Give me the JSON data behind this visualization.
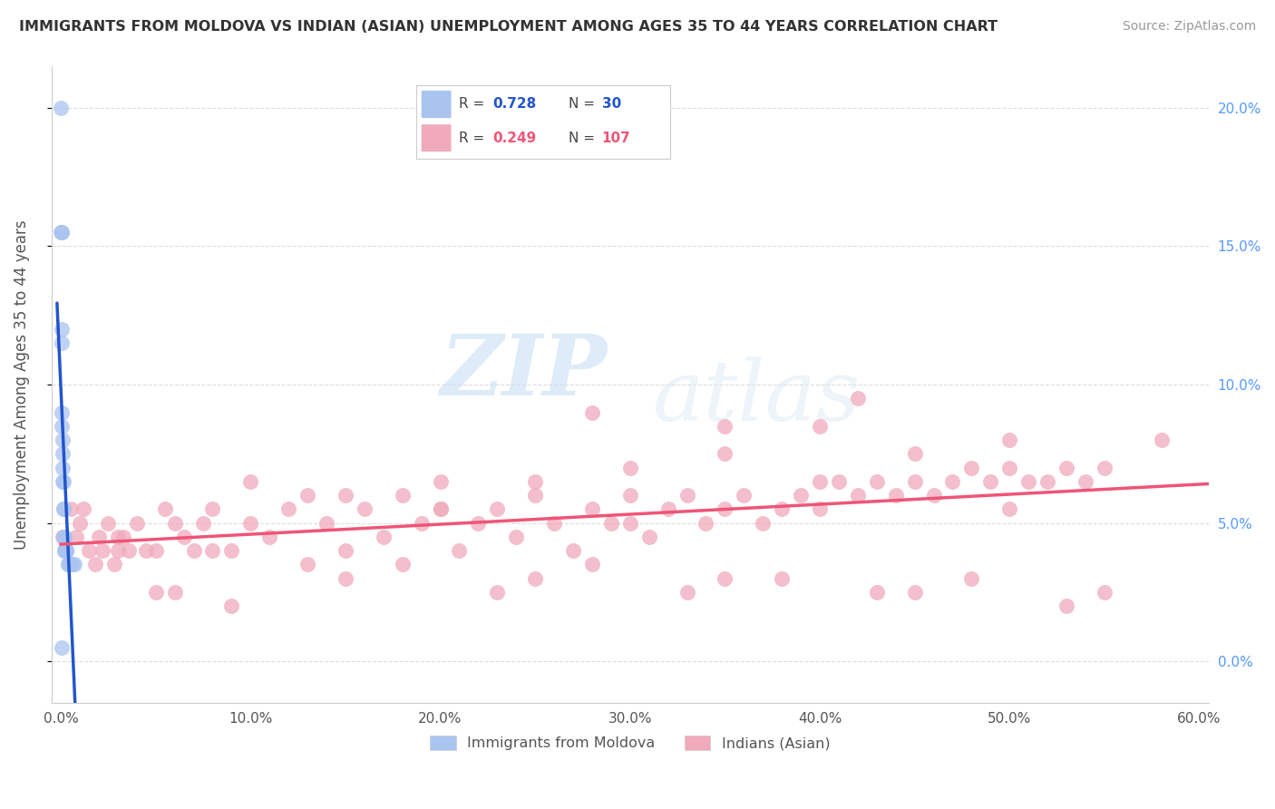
{
  "title": "IMMIGRANTS FROM MOLDOVA VS INDIAN (ASIAN) UNEMPLOYMENT AMONG AGES 35 TO 44 YEARS CORRELATION CHART",
  "source": "Source: ZipAtlas.com",
  "ylabel": "Unemployment Among Ages 35 to 44 years",
  "xlabel_moldova": "Immigrants from Moldova",
  "xlabel_indian": "Indians (Asian)",
  "xlim": [
    -0.005,
    0.605
  ],
  "ylim": [
    -0.015,
    0.215
  ],
  "xticks": [
    0.0,
    0.1,
    0.2,
    0.3,
    0.4,
    0.5,
    0.6
  ],
  "xticklabels": [
    "0.0%",
    "10.0%",
    "20.0%",
    "30.0%",
    "40.0%",
    "50.0%",
    "60.0%"
  ],
  "yticks": [
    0.0,
    0.05,
    0.1,
    0.15,
    0.2
  ],
  "yticklabels": [
    "0.0%",
    "5.0%",
    "10.0%",
    "15.0%",
    "20.0%"
  ],
  "legend_r1": "0.728",
  "legend_n1": "30",
  "legend_r2": "0.249",
  "legend_n2": "107",
  "blue_color": "#aac4f0",
  "pink_color": "#f0aabb",
  "blue_line_color": "#2255cc",
  "pink_line_color": "#ee5577",
  "right_tick_color": "#5599ff",
  "watermark_zip": "ZIP",
  "watermark_atlas": "atlas",
  "moldova_x": [
    0.0002,
    0.0002,
    0.0003,
    0.0003,
    0.0004,
    0.0005,
    0.0005,
    0.0006,
    0.0007,
    0.0008,
    0.0009,
    0.001,
    0.0012,
    0.0013,
    0.0015,
    0.0015,
    0.0018,
    0.002,
    0.002,
    0.002,
    0.0025,
    0.003,
    0.003,
    0.003,
    0.004,
    0.004,
    0.005,
    0.006,
    0.007,
    0.0003
  ],
  "moldova_y": [
    0.2,
    0.155,
    0.155,
    0.155,
    0.12,
    0.085,
    0.115,
    0.09,
    0.08,
    0.075,
    0.07,
    0.065,
    0.065,
    0.055,
    0.055,
    0.045,
    0.045,
    0.045,
    0.04,
    0.04,
    0.04,
    0.04,
    0.04,
    0.04,
    0.035,
    0.035,
    0.035,
    0.035,
    0.035,
    0.005
  ],
  "indian_x": [
    0.001,
    0.003,
    0.005,
    0.008,
    0.01,
    0.012,
    0.015,
    0.018,
    0.02,
    0.022,
    0.025,
    0.028,
    0.03,
    0.033,
    0.036,
    0.04,
    0.045,
    0.05,
    0.055,
    0.06,
    0.065,
    0.07,
    0.075,
    0.08,
    0.09,
    0.1,
    0.11,
    0.12,
    0.13,
    0.14,
    0.15,
    0.16,
    0.17,
    0.18,
    0.19,
    0.2,
    0.21,
    0.22,
    0.23,
    0.24,
    0.25,
    0.26,
    0.27,
    0.28,
    0.29,
    0.3,
    0.31,
    0.32,
    0.33,
    0.34,
    0.35,
    0.36,
    0.37,
    0.38,
    0.39,
    0.4,
    0.41,
    0.42,
    0.43,
    0.44,
    0.45,
    0.46,
    0.47,
    0.48,
    0.49,
    0.5,
    0.51,
    0.52,
    0.53,
    0.54,
    0.55,
    0.28,
    0.35,
    0.42,
    0.2,
    0.3,
    0.4,
    0.5,
    0.15,
    0.25,
    0.35,
    0.45,
    0.1,
    0.2,
    0.3,
    0.4,
    0.5,
    0.05,
    0.15,
    0.25,
    0.35,
    0.45,
    0.55,
    0.08,
    0.18,
    0.28,
    0.38,
    0.48,
    0.58,
    0.13,
    0.23,
    0.33,
    0.43,
    0.53,
    0.03,
    0.06,
    0.09
  ],
  "indian_y": [
    0.045,
    0.04,
    0.055,
    0.045,
    0.05,
    0.055,
    0.04,
    0.035,
    0.045,
    0.04,
    0.05,
    0.035,
    0.04,
    0.045,
    0.04,
    0.05,
    0.04,
    0.04,
    0.055,
    0.05,
    0.045,
    0.04,
    0.05,
    0.055,
    0.04,
    0.05,
    0.045,
    0.055,
    0.06,
    0.05,
    0.04,
    0.055,
    0.045,
    0.06,
    0.05,
    0.055,
    0.04,
    0.05,
    0.055,
    0.045,
    0.06,
    0.05,
    0.04,
    0.055,
    0.05,
    0.05,
    0.045,
    0.055,
    0.06,
    0.05,
    0.055,
    0.06,
    0.05,
    0.055,
    0.06,
    0.055,
    0.065,
    0.06,
    0.065,
    0.06,
    0.065,
    0.06,
    0.065,
    0.07,
    0.065,
    0.07,
    0.065,
    0.065,
    0.07,
    0.065,
    0.07,
    0.09,
    0.085,
    0.095,
    0.065,
    0.07,
    0.085,
    0.08,
    0.06,
    0.065,
    0.075,
    0.075,
    0.065,
    0.055,
    0.06,
    0.065,
    0.055,
    0.025,
    0.03,
    0.03,
    0.03,
    0.025,
    0.025,
    0.04,
    0.035,
    0.035,
    0.03,
    0.03,
    0.08,
    0.035,
    0.025,
    0.025,
    0.025,
    0.02,
    0.045,
    0.025,
    0.02
  ]
}
